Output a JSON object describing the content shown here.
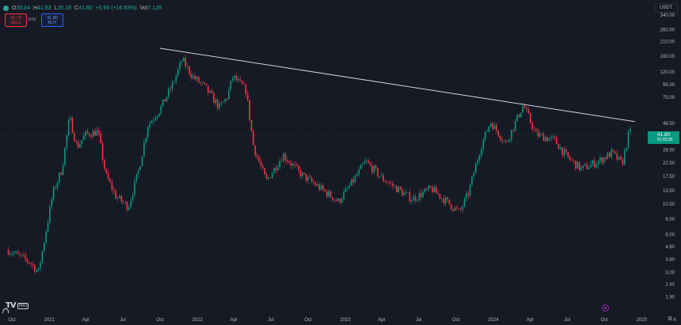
{
  "legend": {
    "open_key": "O",
    "open_value": "35.84",
    "high_key": "H",
    "high_value": "41.83",
    "low_key": "L",
    "low_value": "35.18",
    "close_key": "C",
    "close_value": "41.80",
    "change": "+5.96 (+16.63%)",
    "volume_key": "Vol",
    "volume_value": "7.128"
  },
  "trade": {
    "sell_price": "41.79",
    "sell_label": "SELL",
    "spread": "0.01",
    "buy_price": "41.80",
    "buy_label": "BUY"
  },
  "currency": "USDT",
  "last_price": {
    "price": "41.80",
    "countdown": "01:03:39"
  },
  "logo_badge": "PRO",
  "colors": {
    "up": "#089981",
    "down": "#f23645",
    "background": "#161a25",
    "trendline": "#d1d4dc"
  },
  "icons": [
    "tradingview-logo-icon",
    "walker-icon",
    "go-to-realtime-icon",
    "gear-icon"
  ],
  "chart_data": {
    "type": "candlestick",
    "y_scale": "log",
    "ylim": [
      1.5,
      400
    ],
    "y_ticks": [
      "340.00",
      "260.00",
      "210.00",
      "160.00",
      "120.00",
      "95.00",
      "75.00",
      "46.50",
      "28.50",
      "22.50",
      "17.50",
      "13.50",
      "10.50",
      "8.00",
      "6.00",
      "4.80",
      "3.80",
      "3.00",
      "2.40",
      "1.90"
    ],
    "x_ticks": [
      "Oct",
      "2021",
      "Apr",
      "Jul",
      "Oct",
      "2022",
      "Apr",
      "Jul",
      "Oct",
      "2023",
      "Apr",
      "Jul",
      "Oct",
      "2024",
      "Apr",
      "Jul",
      "Oct",
      "2025",
      "A"
    ],
    "price_path": [
      [
        "2020-09-22",
        4.5
      ],
      [
        "2020-10-15",
        4.1
      ],
      [
        "2020-11-15",
        3.6
      ],
      [
        "2020-12-05",
        3.0
      ],
      [
        "2020-12-20",
        5.5
      ],
      [
        "2021-01-10",
        13.0
      ],
      [
        "2021-02-01",
        20.0
      ],
      [
        "2021-02-20",
        52.0
      ],
      [
        "2021-03-10",
        30.0
      ],
      [
        "2021-04-01",
        38.0
      ],
      [
        "2021-05-01",
        40.0
      ],
      [
        "2021-05-20",
        18.0
      ],
      [
        "2021-06-15",
        12.0
      ],
      [
        "2021-07-15",
        10.0
      ],
      [
        "2021-08-10",
        20.0
      ],
      [
        "2021-09-01",
        45.0
      ],
      [
        "2021-10-01",
        60.0
      ],
      [
        "2021-11-01",
        95.0
      ],
      [
        "2021-11-25",
        150.0
      ],
      [
        "2021-12-20",
        110.0
      ],
      [
        "2022-01-20",
        90.0
      ],
      [
        "2022-02-25",
        62.0
      ],
      [
        "2022-03-15",
        75.0
      ],
      [
        "2022-03-30",
        110.0
      ],
      [
        "2022-05-01",
        85.0
      ],
      [
        "2022-05-20",
        30.0
      ],
      [
        "2022-06-20",
        16.0
      ],
      [
        "2022-08-01",
        26.0
      ],
      [
        "2022-09-15",
        18.0
      ],
      [
        "2022-10-20",
        15.0
      ],
      [
        "2022-12-15",
        11.0
      ],
      [
        "2023-01-20",
        16.0
      ],
      [
        "2023-02-20",
        23.0
      ],
      [
        "2023-04-01",
        17.0
      ],
      [
        "2023-06-15",
        11.5
      ],
      [
        "2023-08-01",
        14.0
      ],
      [
        "2023-09-15",
        10.5
      ],
      [
        "2023-10-10",
        9.0
      ],
      [
        "2023-11-01",
        13.0
      ],
      [
        "2023-12-01",
        30.0
      ],
      [
        "2023-12-25",
        48.0
      ],
      [
        "2024-02-01",
        32.0
      ],
      [
        "2024-03-15",
        65.0
      ],
      [
        "2024-04-15",
        38.0
      ],
      [
        "2024-06-01",
        34.0
      ],
      [
        "2024-07-01",
        25.0
      ],
      [
        "2024-08-05",
        20.0
      ],
      [
        "2024-09-15",
        23.0
      ],
      [
        "2024-10-20",
        27.0
      ],
      [
        "2024-11-14",
        22.0
      ],
      [
        "2024-11-28",
        35.84
      ],
      [
        "2024-12-04",
        41.8
      ]
    ],
    "trendline": [
      [
        "2021-10-01",
        185.0
      ],
      [
        "2024-12-15",
        48.0
      ]
    ],
    "last_close": 41.8
  }
}
